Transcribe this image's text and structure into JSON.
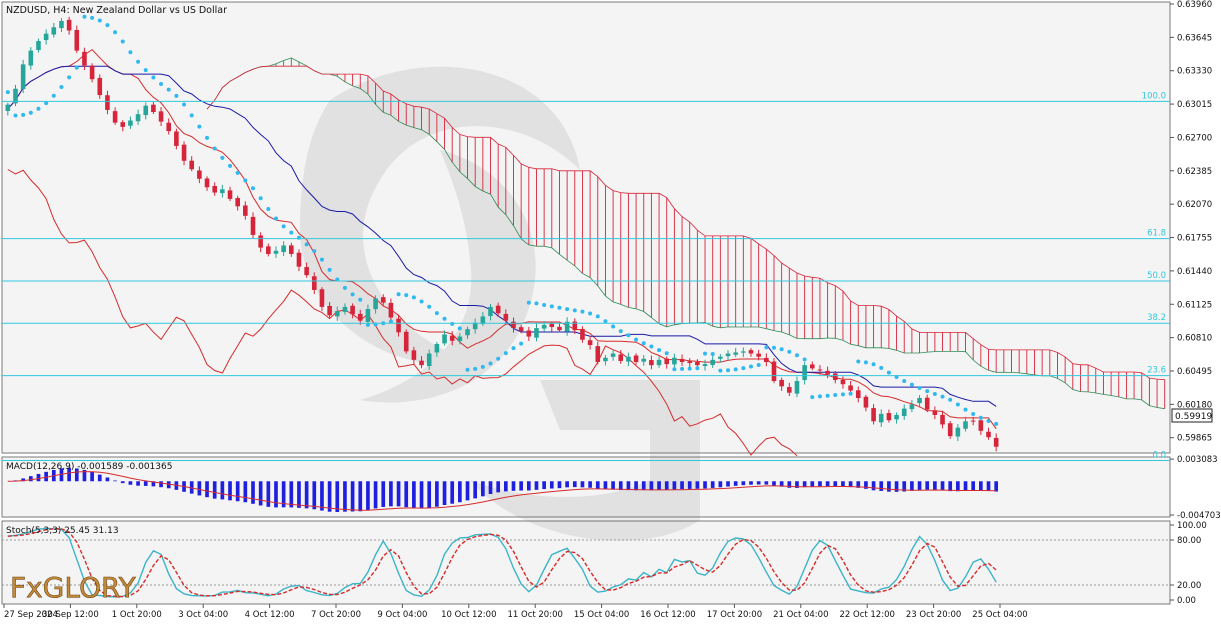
{
  "symbol_line": "NZDUSD, H4:  New Zealand Dollar vs US Dollar",
  "current_price": "0.59919",
  "logo_text": "FxGLORY",
  "colors": {
    "bull": "#26a69a",
    "bear": "#d6243a",
    "kijun": "#d62b2b",
    "tenkan": "#1a1aa8",
    "chikou": "#d62b2b",
    "sar": "#30b8f0",
    "fib": "#32c8dc",
    "cloud_bull": "#2e8b57",
    "cloud_bear": "#d6243a",
    "macd_hist": "#1f1fe0",
    "macd_signal": "#d62b2b",
    "stoch_main": "#3cb4c8",
    "stoch_signal": "#d62b2b",
    "grid": "#c8c8c8",
    "price_label_bg": "#ffffff"
  },
  "price_axis": {
    "ticks": [
      "0.63960",
      "0.63645",
      "0.63330",
      "0.63015",
      "0.62700",
      "0.62385",
      "0.62070",
      "0.61755",
      "0.61440",
      "0.61125",
      "0.60810",
      "0.60495",
      "0.60180",
      "0.59865"
    ],
    "range": [
      0.5973,
      0.6396
    ]
  },
  "fib_levels": [
    {
      "label": "100.0",
      "price": 0.63041
    },
    {
      "label": "61.8",
      "price": 0.61745
    },
    {
      "label": "50.0",
      "price": 0.61345
    },
    {
      "label": "38.2",
      "price": 0.60946
    },
    {
      "label": "23.6",
      "price": 0.60451
    },
    {
      "label": "0.0",
      "price": 0.5965
    }
  ],
  "macd": {
    "label": "MACD(12,26,9) -0.001589 -0.001365",
    "ticks": [
      "0.003083",
      "-0.004703"
    ],
    "range": [
      -0.0047,
      0.0031
    ]
  },
  "stoch": {
    "label": "Stoch(5,3,3) 25.45 31.13",
    "ticks": [
      "100.00",
      "80.00",
      "20.00",
      "0.00"
    ],
    "range": [
      0,
      100
    ]
  },
  "time_axis": [
    "27 Sep 2024",
    "30 Sep 12:00",
    "1 Oct 20:00",
    "3 Oct 04:00",
    "4 Oct 12:00",
    "7 Oct 20:00",
    "9 Oct 04:00",
    "10 Oct 12:00",
    "11 Oct 20:00",
    "15 Oct 04:00",
    "16 Oct 12:00",
    "17 Oct 20:00",
    "21 Oct 04:00",
    "22 Oct 12:00",
    "23 Oct 20:00",
    "25 Oct 04:00"
  ],
  "chart_data": {
    "type": "candlestick",
    "title": "NZDUSD, H4:  New Zealand Dollar vs US Dollar",
    "x_range": [
      "27 Sep 2024",
      "25 Oct 2024"
    ],
    "y_range": [
      0.5973,
      0.6396
    ],
    "grid": false,
    "indicators": [
      "Ichimoku Kinko Hyo",
      "Parabolic SAR",
      "Fibonacci retracement",
      "MACD(12,26,9)",
      "Stoch(5,3,3)"
    ],
    "close_path": [
      0.6301,
      0.6316,
      0.6339,
      0.6352,
      0.6361,
      0.6368,
      0.6374,
      0.638,
      0.6371,
      0.6352,
      0.6338,
      0.6325,
      0.631,
      0.6296,
      0.6284,
      0.628,
      0.6286,
      0.6292,
      0.63,
      0.6294,
      0.6285,
      0.6276,
      0.6262,
      0.6248,
      0.624,
      0.6231,
      0.6223,
      0.6218,
      0.6221,
      0.6212,
      0.6205,
      0.6196,
      0.6178,
      0.6166,
      0.616,
      0.6163,
      0.6168,
      0.616,
      0.6148,
      0.614,
      0.6126,
      0.611,
      0.6102,
      0.6106,
      0.611,
      0.6103,
      0.6097,
      0.6108,
      0.6118,
      0.6114,
      0.61,
      0.6086,
      0.6068,
      0.606,
      0.6055,
      0.6066,
      0.6075,
      0.6084,
      0.6078,
      0.6082,
      0.6089,
      0.6095,
      0.6101,
      0.611,
      0.6104,
      0.6097,
      0.609,
      0.6087,
      0.6082,
      0.609,
      0.6093,
      0.6091,
      0.6088,
      0.6096,
      0.6088,
      0.6079,
      0.6074,
      0.6058,
      0.6062,
      0.6066,
      0.6059,
      0.6063,
      0.6058,
      0.6061,
      0.6055,
      0.606,
      0.6056,
      0.6062,
      0.6058,
      0.6057,
      0.6055,
      0.6056,
      0.606,
      0.6063,
      0.6066,
      0.6067,
      0.6068,
      0.6066,
      0.6063,
      0.6058,
      0.604,
      0.6035,
      0.6029,
      0.604,
      0.6055,
      0.6052,
      0.605,
      0.6046,
      0.6041,
      0.6037,
      0.6031,
      0.6024,
      0.6015,
      0.6002,
      0.6009,
      0.6003,
      0.6008,
      0.6014,
      0.6018,
      0.6024,
      0.6013,
      0.6008,
      0.5999,
      0.5988,
      0.5996,
      0.6002,
      0.6002,
      0.5993,
      0.5987,
      0.5978
    ],
    "ohlc_last": {
      "close": 0.59919
    },
    "macd": {
      "name": "MACD(12,26,9)",
      "main": -0.001589,
      "signal": -0.001365
    },
    "stochastic": {
      "name": "Stoch(5,3,3)",
      "k": 25.45,
      "d": 31.13,
      "levels": [
        20,
        80
      ]
    }
  }
}
